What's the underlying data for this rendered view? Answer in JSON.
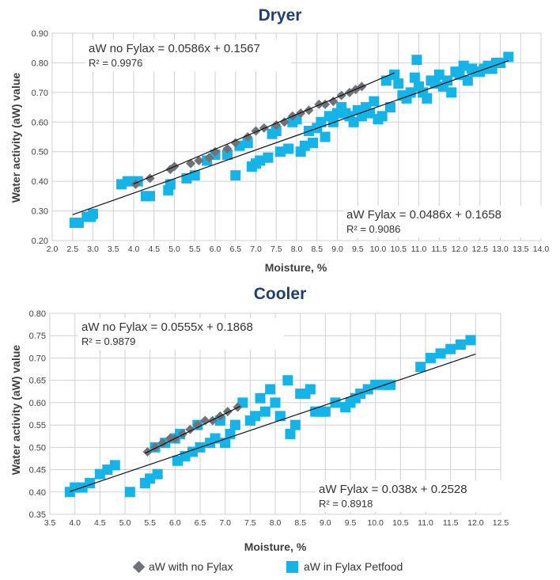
{
  "colors": {
    "title": "#1f3f73",
    "no_fylax": "#6f7277",
    "fylax": "#14b4e8",
    "trendline": "#111111",
    "grid": "#d0d0d0",
    "axis_text": "#3f3f3f"
  },
  "legend": {
    "no_fylax_label": "aW with no Fylax",
    "fylax_label": "aW in Fylax Petfood",
    "no_fylax_icon": "diamond-icon",
    "fylax_icon": "square-icon"
  },
  "chart_data": [
    {
      "type": "scatter",
      "title": "Dryer",
      "xlabel": "Moisture, %",
      "ylabel": "Water activity (aW) value",
      "xlim": [
        2.0,
        14.0
      ],
      "ylim": [
        0.2,
        0.9
      ],
      "xticks": [
        "2.0",
        "2.5",
        "3.0",
        "3.5",
        "4.0",
        "4.5",
        "5.0",
        "5.5",
        "6.0",
        "6.5",
        "7.0",
        "7.5",
        "8.0",
        "8.5",
        "9.0",
        "9.5",
        "10.0",
        "10.5",
        "11.0",
        "11.5",
        "12.0",
        "12.5",
        "13.0",
        "13.5",
        "14.0"
      ],
      "yticks": [
        "0.20",
        "0.30",
        "0.40",
        "0.50",
        "0.60",
        "0.70",
        "0.80",
        "0.90"
      ],
      "grid": true,
      "series": [
        {
          "name": "aW with no Fylax",
          "marker": "diamond",
          "points": [
            [
              4.05,
              0.39
            ],
            [
              4.4,
              0.41
            ],
            [
              4.9,
              0.44
            ],
            [
              5.0,
              0.45
            ],
            [
              5.4,
              0.46
            ],
            [
              5.6,
              0.47
            ],
            [
              5.85,
              0.48
            ],
            [
              6.0,
              0.5
            ],
            [
              6.3,
              0.51
            ],
            [
              6.5,
              0.53
            ],
            [
              6.8,
              0.55
            ],
            [
              7.0,
              0.57
            ],
            [
              7.2,
              0.58
            ],
            [
              7.5,
              0.59
            ],
            [
              7.7,
              0.6
            ],
            [
              7.9,
              0.62
            ],
            [
              8.1,
              0.63
            ],
            [
              8.3,
              0.64
            ],
            [
              8.55,
              0.66
            ],
            [
              8.7,
              0.66
            ],
            [
              8.9,
              0.67
            ],
            [
              9.1,
              0.69
            ],
            [
              9.3,
              0.7
            ],
            [
              9.45,
              0.71
            ],
            [
              9.6,
              0.72
            ]
          ]
        },
        {
          "name": "aW in Fylax Petfood",
          "marker": "square",
          "points": [
            [
              2.55,
              0.26
            ],
            [
              2.65,
              0.26
            ],
            [
              2.85,
              0.28
            ],
            [
              3.0,
              0.29
            ],
            [
              2.95,
              0.28
            ],
            [
              3.7,
              0.39
            ],
            [
              3.85,
              0.4
            ],
            [
              3.95,
              0.4
            ],
            [
              4.1,
              0.4
            ],
            [
              4.3,
              0.35
            ],
            [
              4.4,
              0.35
            ],
            [
              4.85,
              0.37
            ],
            [
              4.9,
              0.39
            ],
            [
              5.3,
              0.41
            ],
            [
              5.5,
              0.42
            ],
            [
              5.8,
              0.47
            ],
            [
              6.0,
              0.49
            ],
            [
              6.3,
              0.49
            ],
            [
              6.5,
              0.42
            ],
            [
              6.6,
              0.52
            ],
            [
              6.8,
              0.53
            ],
            [
              6.9,
              0.45
            ],
            [
              7.0,
              0.46
            ],
            [
              7.1,
              0.47
            ],
            [
              7.3,
              0.48
            ],
            [
              7.4,
              0.56
            ],
            [
              7.5,
              0.57
            ],
            [
              7.6,
              0.5
            ],
            [
              7.8,
              0.51
            ],
            [
              7.9,
              0.6
            ],
            [
              8.0,
              0.61
            ],
            [
              8.1,
              0.5
            ],
            [
              8.2,
              0.52
            ],
            [
              8.3,
              0.57
            ],
            [
              8.4,
              0.53
            ],
            [
              8.5,
              0.58
            ],
            [
              8.6,
              0.6
            ],
            [
              8.7,
              0.55
            ],
            [
              8.8,
              0.62
            ],
            [
              8.9,
              0.6
            ],
            [
              9.0,
              0.63
            ],
            [
              9.1,
              0.65
            ],
            [
              9.2,
              0.63
            ],
            [
              9.3,
              0.62
            ],
            [
              9.4,
              0.6
            ],
            [
              9.5,
              0.64
            ],
            [
              9.6,
              0.62
            ],
            [
              9.7,
              0.65
            ],
            [
              9.8,
              0.63
            ],
            [
              9.9,
              0.67
            ],
            [
              10.0,
              0.61
            ],
            [
              10.1,
              0.62
            ],
            [
              10.2,
              0.74
            ],
            [
              10.3,
              0.65
            ],
            [
              10.4,
              0.76
            ],
            [
              10.5,
              0.73
            ],
            [
              10.6,
              0.69
            ],
            [
              10.7,
              0.68
            ],
            [
              10.8,
              0.7
            ],
            [
              10.9,
              0.75
            ],
            [
              10.95,
              0.81
            ],
            [
              11.0,
              0.72
            ],
            [
              11.1,
              0.7
            ],
            [
              11.2,
              0.68
            ],
            [
              11.3,
              0.74
            ],
            [
              11.4,
              0.73
            ],
            [
              11.5,
              0.76
            ],
            [
              11.6,
              0.72
            ],
            [
              11.7,
              0.74
            ],
            [
              11.8,
              0.7
            ],
            [
              11.9,
              0.77
            ],
            [
              12.0,
              0.76
            ],
            [
              12.1,
              0.79
            ],
            [
              12.2,
              0.74
            ],
            [
              12.3,
              0.78
            ],
            [
              12.4,
              0.77
            ],
            [
              12.5,
              0.77
            ],
            [
              12.6,
              0.78
            ],
            [
              12.7,
              0.79
            ],
            [
              12.8,
              0.78
            ],
            [
              12.9,
              0.8
            ],
            [
              13.0,
              0.8
            ],
            [
              13.2,
              0.82
            ]
          ]
        }
      ],
      "trendlines": [
        {
          "series": "aW no Fylax",
          "slope": 0.0586,
          "intercept": 0.1567,
          "x_range": [
            4.0,
            10.4
          ]
        },
        {
          "series": "aW Fylax",
          "slope": 0.0486,
          "intercept": 0.1658,
          "x_range": [
            2.5,
            13.2
          ]
        }
      ],
      "annotations": [
        {
          "eq": "aW no Fylax = 0.0586x + 0.1567",
          "r2": "R² = 0.9976",
          "placement": "top-left"
        },
        {
          "eq": "aW Fylax = 0.0486x + 0.1658",
          "r2": "R² = 0.9086",
          "placement": "bottom-right"
        }
      ]
    },
    {
      "type": "scatter",
      "title": "Cooler",
      "xlabel": "Moisture, %",
      "ylabel": "Water activity (aW) value",
      "xlim": [
        3.5,
        12.5
      ],
      "ylim": [
        0.35,
        0.8
      ],
      "xticks": [
        "3.5",
        "4.0",
        "4.5",
        "5.0",
        "5.5",
        "6.0",
        "6.5",
        "7.0",
        "7.5",
        "8.0",
        "8.5",
        "9.0",
        "9.5",
        "10.0",
        "10.5",
        "11.0",
        "11.5",
        "12.0",
        "12.5"
      ],
      "yticks": [
        "0.35",
        "0.40",
        "0.45",
        "0.50",
        "0.55",
        "0.60",
        "0.65",
        "0.70",
        "0.75",
        "0.80"
      ],
      "grid": true,
      "series": [
        {
          "name": "aW with no Fylax",
          "marker": "diamond",
          "points": [
            [
              5.45,
              0.49
            ],
            [
              5.6,
              0.5
            ],
            [
              5.75,
              0.51
            ],
            [
              5.9,
              0.52
            ],
            [
              6.0,
              0.52
            ],
            [
              6.15,
              0.53
            ],
            [
              6.3,
              0.54
            ],
            [
              6.45,
              0.55
            ],
            [
              6.6,
              0.56
            ],
            [
              6.75,
              0.56
            ],
            [
              6.9,
              0.57
            ],
            [
              7.05,
              0.58
            ],
            [
              7.25,
              0.59
            ]
          ]
        },
        {
          "name": "aW in Fylax Petfood",
          "marker": "square",
          "points": [
            [
              3.9,
              0.4
            ],
            [
              4.0,
              0.41
            ],
            [
              4.15,
              0.41
            ],
            [
              4.3,
              0.42
            ],
            [
              4.5,
              0.44
            ],
            [
              4.65,
              0.45
            ],
            [
              4.8,
              0.46
            ],
            [
              5.1,
              0.4
            ],
            [
              5.4,
              0.42
            ],
            [
              5.5,
              0.43
            ],
            [
              5.65,
              0.44
            ],
            [
              5.6,
              0.5
            ],
            [
              5.8,
              0.51
            ],
            [
              6.0,
              0.52
            ],
            [
              6.05,
              0.47
            ],
            [
              6.1,
              0.53
            ],
            [
              6.2,
              0.48
            ],
            [
              6.35,
              0.49
            ],
            [
              6.45,
              0.55
            ],
            [
              6.5,
              0.5
            ],
            [
              6.7,
              0.51
            ],
            [
              6.8,
              0.52
            ],
            [
              6.9,
              0.56
            ],
            [
              7.0,
              0.51
            ],
            [
              7.1,
              0.53
            ],
            [
              7.2,
              0.55
            ],
            [
              7.35,
              0.6
            ],
            [
              7.5,
              0.56
            ],
            [
              7.6,
              0.57
            ],
            [
              7.7,
              0.61
            ],
            [
              7.8,
              0.58
            ],
            [
              7.9,
              0.63
            ],
            [
              8.0,
              0.6
            ],
            [
              8.1,
              0.57
            ],
            [
              8.25,
              0.65
            ],
            [
              8.3,
              0.53
            ],
            [
              8.4,
              0.55
            ],
            [
              8.5,
              0.62
            ],
            [
              8.6,
              0.62
            ],
            [
              8.7,
              0.63
            ],
            [
              8.8,
              0.58
            ],
            [
              8.9,
              0.58
            ],
            [
              9.0,
              0.58
            ],
            [
              9.2,
              0.6
            ],
            [
              9.4,
              0.59
            ],
            [
              9.5,
              0.6
            ],
            [
              9.6,
              0.61
            ],
            [
              9.7,
              0.62
            ],
            [
              9.85,
              0.63
            ],
            [
              10.0,
              0.64
            ],
            [
              10.2,
              0.64
            ],
            [
              10.3,
              0.64
            ],
            [
              10.9,
              0.68
            ],
            [
              11.1,
              0.7
            ],
            [
              11.3,
              0.71
            ],
            [
              11.5,
              0.72
            ],
            [
              11.7,
              0.73
            ],
            [
              11.9,
              0.74
            ]
          ]
        }
      ],
      "trendlines": [
        {
          "series": "aW no Fylax",
          "slope": 0.0555,
          "intercept": 0.1868,
          "x_range": [
            5.4,
            7.3
          ]
        },
        {
          "series": "aW Fylax",
          "slope": 0.038,
          "intercept": 0.2528,
          "x_range": [
            3.9,
            12.0
          ]
        }
      ],
      "annotations": [
        {
          "eq": "aW no Fylax = 0.0555x + 0.1868",
          "r2": "R² = 0.9879",
          "placement": "top-left"
        },
        {
          "eq": "aW Fylax = 0.038x + 0.2528",
          "r2": "R² = 0.8918",
          "placement": "bottom-right"
        }
      ]
    }
  ]
}
